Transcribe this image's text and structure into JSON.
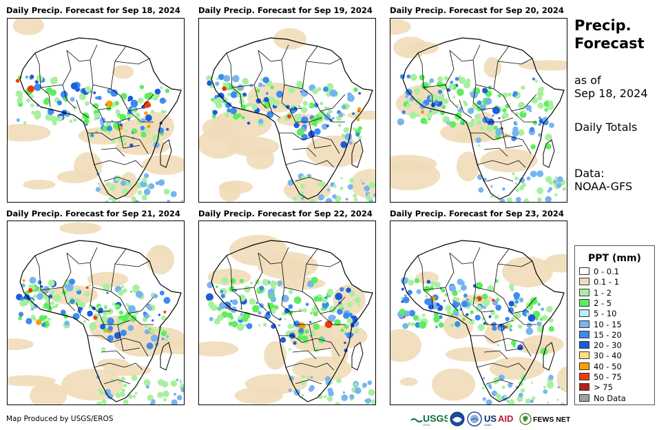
{
  "panels": [
    {
      "title": "Daily Precip. Forecast for Sep 18, 2024"
    },
    {
      "title": "Daily Precip. Forecast for Sep 19, 2024"
    },
    {
      "title": "Daily Precip. Forecast for Sep 20, 2024"
    },
    {
      "title": "Daily Precip. Forecast for Sep 21, 2024"
    },
    {
      "title": "Daily Precip. Forecast for Sep 22, 2024"
    },
    {
      "title": "Daily Precip. Forecast for Sep 23, 2024"
    }
  ],
  "side": {
    "title_line1": "Precip.",
    "title_line2": "Forecast",
    "asof_line1": "as of",
    "asof_line2": "Sep 18, 2024",
    "totals": "Daily Totals",
    "data_line1": "Data:",
    "data_line2": "NOAA-GFS"
  },
  "legend": {
    "title": "PPT (mm)",
    "items": [
      {
        "label": "0 - 0.1",
        "color": "#ffffff"
      },
      {
        "label": "0.1 - 1",
        "color": "#f0dcb8"
      },
      {
        "label": "1 - 2",
        "color": "#a8f0a0"
      },
      {
        "label": "2 - 5",
        "color": "#5cee5c"
      },
      {
        "label": "5 - 10",
        "color": "#b4f0f8"
      },
      {
        "label": "10 - 15",
        "color": "#78b4f0"
      },
      {
        "label": "15 - 20",
        "color": "#3c8cf0"
      },
      {
        "label": "20 - 30",
        "color": "#1e5adc"
      },
      {
        "label": "30 - 40",
        "color": "#fae17d"
      },
      {
        "label": "40 - 50",
        "color": "#f5a000"
      },
      {
        "label": "50 - 75",
        "color": "#f03c00"
      },
      {
        "label": "> 75",
        "color": "#b41e1e"
      },
      {
        "label": "No Data",
        "color": "#a0a0a0"
      }
    ]
  },
  "footer": {
    "credit": "Map Produced by USGS/EROS",
    "logos": [
      "USGS",
      "NOAA",
      "DOI",
      "USAID",
      "FEWS NET"
    ]
  }
}
